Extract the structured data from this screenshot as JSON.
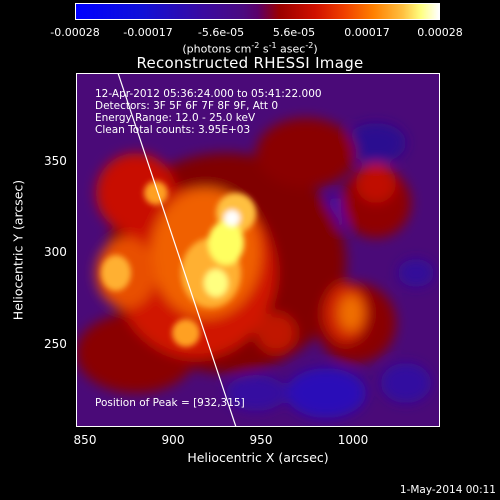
{
  "colorbar": {
    "ticks": [
      "-0.00028",
      "-0.00017",
      "-5.6e-05",
      "5.6e-05",
      "0.00017",
      "0.00028"
    ],
    "units_main": "(photons cm",
    "units_exp1": "-2",
    "units_mid1": " s",
    "units_exp2": "-1",
    "units_mid2": " asec",
    "units_exp3": "-2",
    "units_close": ")"
  },
  "title": "Reconstructed RHESSI Image",
  "info": {
    "time_range": "12-Apr-2012 05:36:24.000 to 05:41:22.000",
    "detectors": "Detectors: 3F 5F 6F 7F 8F 9F, Att 0",
    "energy": "Energy Range: 12.0 - 25.0 keV",
    "clean": "Clean    Total counts: 3.95E+03",
    "peak": "Position of Peak = [932,315]"
  },
  "axes": {
    "xlabel": "Heliocentric X (arcsec)",
    "ylabel": "Heliocentric Y (arcsec)",
    "xticks": [
      "850",
      "900",
      "950",
      "1000"
    ],
    "yticks": [
      "350",
      "300",
      "250"
    ]
  },
  "timestamp": "1-May-2014 00:11"
}
